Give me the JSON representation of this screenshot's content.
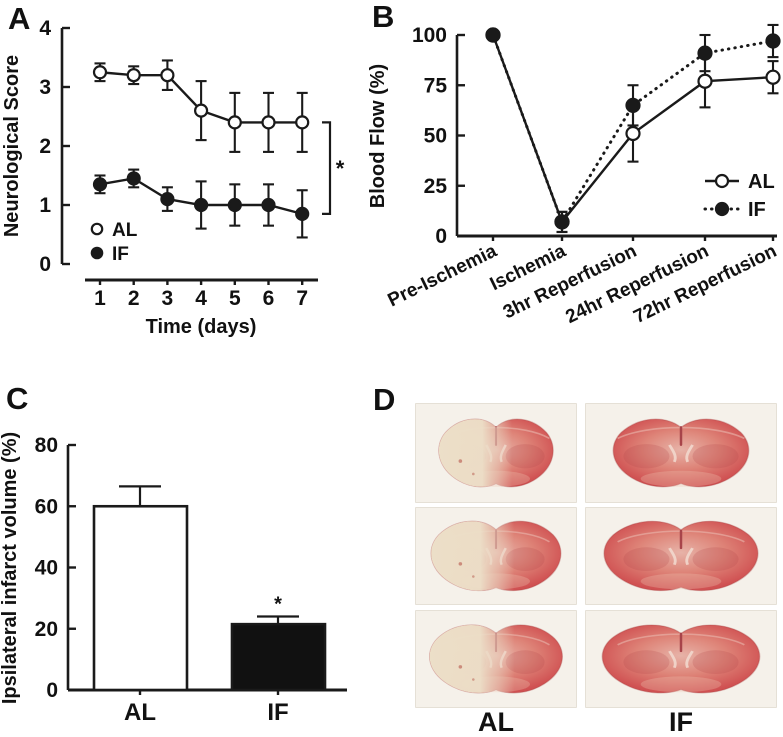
{
  "figure_background": "#ffffff",
  "ink_color": "#1a1a1a",
  "panels": {
    "a": {
      "letter": "A"
    },
    "b": {
      "letter": "B"
    },
    "c": {
      "letter": "C"
    },
    "d": {
      "letter": "D"
    }
  },
  "chart_data": [
    {
      "panel": "A",
      "type": "line",
      "x": [
        1,
        2,
        3,
        4,
        5,
        6,
        7
      ],
      "xlabel": "Time (days)",
      "ylabel": "Neurological Score",
      "ylim": [
        0,
        4
      ],
      "yticks": [
        0,
        1,
        2,
        3,
        4
      ],
      "grid": false,
      "legend_position": "inside-bottom-left",
      "series": [
        {
          "name": "AL",
          "marker": "open-circle",
          "line_style": "solid",
          "values": [
            3.25,
            3.2,
            3.2,
            2.6,
            2.4,
            2.4,
            2.4
          ],
          "errors": [
            0.15,
            0.15,
            0.25,
            0.5,
            0.5,
            0.5,
            0.5
          ]
        },
        {
          "name": "IF",
          "marker": "filled-circle",
          "line_style": "solid",
          "values": [
            1.35,
            1.45,
            1.1,
            1.0,
            1.0,
            1.0,
            0.85
          ],
          "errors": [
            0.15,
            0.15,
            0.2,
            0.4,
            0.35,
            0.35,
            0.4
          ]
        }
      ],
      "significance": {
        "symbol": "*",
        "compares": [
          "AL",
          "IF"
        ],
        "at_x": 7
      }
    },
    {
      "panel": "B",
      "type": "line",
      "categories": [
        "Pre-Ischemia",
        "Ischemia",
        "3hr Reperfusion",
        "24hr Reperfusion",
        "72hr Reperfusion"
      ],
      "ylabel": "Blood Flow (%)",
      "ylim": [
        0,
        100
      ],
      "yticks": [
        0,
        25,
        50,
        75,
        100
      ],
      "grid": false,
      "legend_position": "inside-right",
      "series": [
        {
          "name": "AL",
          "marker": "open-circle",
          "line_style": "solid",
          "values": [
            100,
            7,
            51,
            77,
            79
          ],
          "errors": [
            0,
            5,
            14,
            13,
            8
          ]
        },
        {
          "name": "IF",
          "marker": "filled-circle",
          "line_style": "dotted",
          "values": [
            100,
            7,
            65,
            91,
            97
          ],
          "errors": [
            0,
            5,
            10,
            9,
            8
          ]
        }
      ]
    },
    {
      "panel": "C",
      "type": "bar",
      "categories": [
        "AL",
        "IF"
      ],
      "values": [
        60,
        21.5
      ],
      "errors": [
        6.5,
        2.5
      ],
      "bar_fills": [
        "#ffffff",
        "#111111"
      ],
      "ylabel": "Ipsilateral infarct volume (%)",
      "ylim": [
        0,
        80
      ],
      "yticks": [
        0,
        20,
        40,
        60,
        80
      ],
      "grid": false,
      "significance": {
        "symbol": "*",
        "on_category": "IF"
      }
    }
  ],
  "panel_d": {
    "column_labels": [
      "AL",
      "IF"
    ],
    "rows": 3,
    "cells": [
      {
        "column": "AL",
        "row": 1,
        "image": "brain-section-infarct-photo"
      },
      {
        "column": "IF",
        "row": 1,
        "image": "brain-section-healthy-photo"
      },
      {
        "column": "AL",
        "row": 2,
        "image": "brain-section-infarct-photo"
      },
      {
        "column": "IF",
        "row": 2,
        "image": "brain-section-healthy-photo"
      },
      {
        "column": "AL",
        "row": 3,
        "image": "brain-section-infarct-photo"
      },
      {
        "column": "IF",
        "row": 3,
        "image": "brain-section-healthy-photo"
      }
    ],
    "colors": {
      "photo_background": "#f5f1ea",
      "stain_red": "#d05152",
      "stain_red_light": "#de8478",
      "inner_pink": "#e7b3a8",
      "infarct_pale": "#ecdfc8",
      "dark_structure": "#b04648"
    }
  }
}
